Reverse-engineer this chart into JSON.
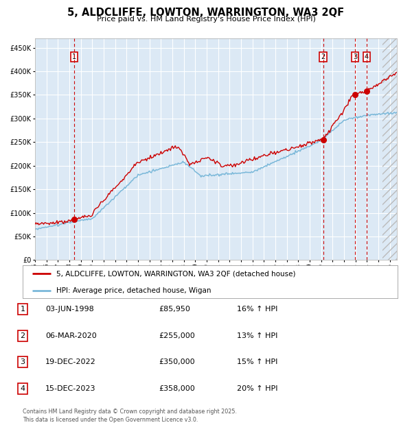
{
  "title": "5, ALDCLIFFE, LOWTON, WARRINGTON, WA3 2QF",
  "subtitle": "Price paid vs. HM Land Registry's House Price Index (HPI)",
  "plot_bg_color": "#dce9f5",
  "hpi_line_color": "#7ab8d9",
  "price_line_color": "#cc0000",
  "grid_color": "#ffffff",
  "ylim": [
    0,
    470000
  ],
  "yticks": [
    0,
    50000,
    100000,
    150000,
    200000,
    250000,
    300000,
    350000,
    400000,
    450000
  ],
  "xlim_start": 1995.0,
  "xlim_end": 2026.6,
  "transactions": [
    {
      "label": "1",
      "date_num": 1998.42,
      "price": 85950
    },
    {
      "label": "2",
      "date_num": 2020.17,
      "price": 255000
    },
    {
      "label": "3",
      "date_num": 2022.96,
      "price": 350000
    },
    {
      "label": "4",
      "date_num": 2023.96,
      "price": 358000
    }
  ],
  "legend_entries": [
    "5, ALDCLIFFE, LOWTON, WARRINGTON, WA3 2QF (detached house)",
    "HPI: Average price, detached house, Wigan"
  ],
  "table_rows": [
    {
      "num": "1",
      "date": "03-JUN-1998",
      "price": "£85,950",
      "hpi": "16% ↑ HPI"
    },
    {
      "num": "2",
      "date": "06-MAR-2020",
      "price": "£255,000",
      "hpi": "13% ↑ HPI"
    },
    {
      "num": "3",
      "date": "19-DEC-2022",
      "price": "£350,000",
      "hpi": "15% ↑ HPI"
    },
    {
      "num": "4",
      "date": "15-DEC-2023",
      "price": "£358,000",
      "hpi": "20% ↑ HPI"
    }
  ],
  "footer": "Contains HM Land Registry data © Crown copyright and database right 2025.\nThis data is licensed under the Open Government Licence v3.0."
}
